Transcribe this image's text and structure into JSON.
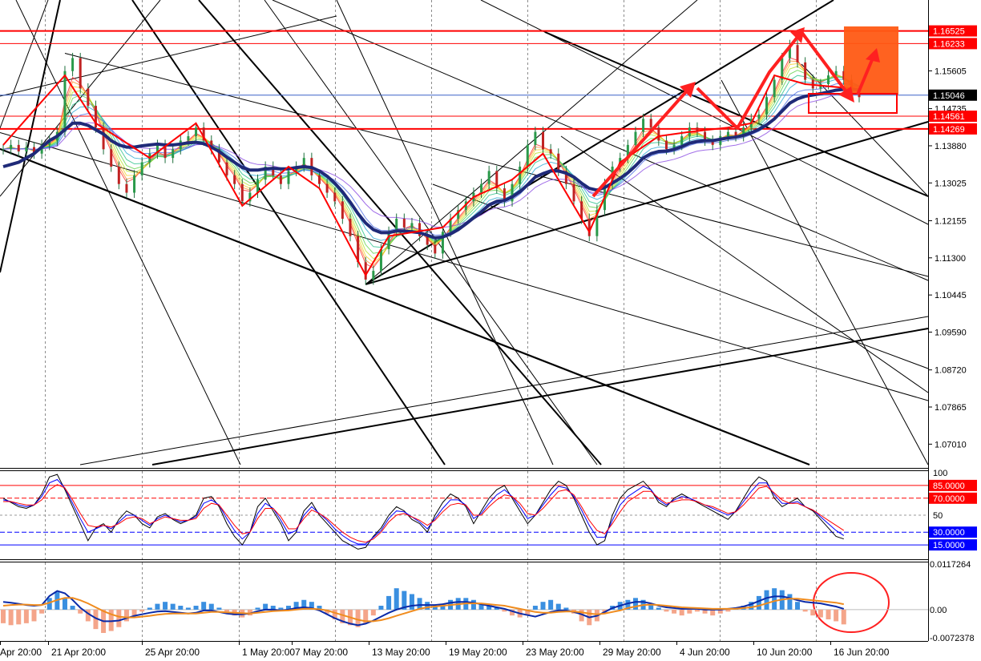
{
  "chart_data": [
    {
      "type": "candlestick",
      "panel": "price",
      "ylim": [
        1.065,
        1.172
      ],
      "price_ticks": [
        "1.15605",
        "1.14735",
        "1.13880",
        "1.13025",
        "1.12155",
        "1.11300",
        "1.10445",
        "1.09590",
        "1.08720",
        "1.07865",
        "1.07010"
      ],
      "levels": [
        {
          "label": "1.16525",
          "value": 1.16525,
          "color": "#ff0000",
          "style": "thick"
        },
        {
          "label": "1.16233",
          "value": 1.16233,
          "color": "#ff0000",
          "style": "thin"
        },
        {
          "label": "1.15046",
          "value": 1.15046,
          "color": "#000000",
          "style": "current"
        },
        {
          "label": "1.14561",
          "value": 1.14561,
          "color": "#ff0000",
          "style": "thin"
        },
        {
          "label": "1.14269",
          "value": 1.14269,
          "color": "#ff0000",
          "style": "thick"
        }
      ],
      "series": [
        {
          "name": "",
          "kind": "close",
          "color": "#2a7f5f",
          "values": [
            1.138,
            1.139,
            1.1375,
            1.1385,
            1.137,
            1.139,
            1.14,
            1.142,
            1.156,
            1.159,
            1.152,
            1.148,
            1.143,
            1.138,
            1.134,
            1.13,
            1.128,
            1.132,
            1.135,
            1.137,
            1.139,
            1.136,
            1.138,
            1.14,
            1.141,
            1.143,
            1.14,
            1.138,
            1.135,
            1.132,
            1.13,
            1.126,
            1.128,
            1.131,
            1.134,
            1.132,
            1.13,
            1.133,
            1.134,
            1.136,
            1.132,
            1.13,
            1.128,
            1.126,
            1.122,
            1.118,
            1.112,
            1.108,
            1.11,
            1.115,
            1.119,
            1.122,
            1.12,
            1.121,
            1.118,
            1.116,
            1.114,
            1.119,
            1.122,
            1.124,
            1.126,
            1.128,
            1.13,
            1.133,
            1.129,
            1.126,
            1.13,
            1.134,
            1.139,
            1.142,
            1.138,
            1.137,
            1.133,
            1.13,
            1.126,
            1.122,
            1.118,
            1.124,
            1.13,
            1.134,
            1.136,
            1.139,
            1.142,
            1.145,
            1.143,
            1.14,
            1.138,
            1.139,
            1.141,
            1.143,
            1.142,
            1.14,
            1.139,
            1.141,
            1.142,
            1.141,
            1.143,
            1.145,
            1.146,
            1.15,
            1.154,
            1.159,
            1.162,
            1.158,
            1.154,
            1.152,
            1.153,
            1.155,
            1.156,
            1.154,
            1.151,
            1.15
          ]
        },
        {
          "name": "",
          "kind": "ma",
          "color": "#1f2a78",
          "values": [
            1.134,
            1.1345,
            1.135,
            1.136,
            1.137,
            1.1385,
            1.14,
            1.141,
            1.1425,
            1.144,
            1.144,
            1.1435,
            1.1425,
            1.1415,
            1.14,
            1.139,
            1.1385,
            1.1385,
            1.1388,
            1.139,
            1.1392,
            1.139,
            1.139,
            1.1392,
            1.1395,
            1.1396,
            1.1393,
            1.1385,
            1.1375,
            1.1362,
            1.135,
            1.1338,
            1.1332,
            1.1332,
            1.1335,
            1.1336,
            1.1335,
            1.1335,
            1.1338,
            1.134,
            1.1338,
            1.133,
            1.1318,
            1.1302,
            1.1282,
            1.1258,
            1.1232,
            1.121,
            1.1195,
            1.1188,
            1.1188,
            1.1192,
            1.1192,
            1.119,
            1.1188,
            1.1182,
            1.1176,
            1.1178,
            1.1185,
            1.1195,
            1.1208,
            1.1222,
            1.1236,
            1.1252,
            1.126,
            1.1262,
            1.127,
            1.1282,
            1.1298,
            1.1316,
            1.1324,
            1.133,
            1.133,
            1.1325,
            1.1316,
            1.1302,
            1.129,
            1.1286,
            1.1292,
            1.1302,
            1.1313,
            1.1326,
            1.1342,
            1.136,
            1.137,
            1.1375,
            1.1376,
            1.138,
            1.1386,
            1.1394,
            1.1398,
            1.14,
            1.14,
            1.1403,
            1.1406,
            1.1408,
            1.1412,
            1.1418,
            1.1426,
            1.1436,
            1.145,
            1.1468,
            1.1486,
            1.1496,
            1.1502,
            1.1505,
            1.1508,
            1.1512,
            1.1516,
            1.1518,
            1.1518,
            1.1517
          ]
        }
      ]
    },
    {
      "type": "line",
      "panel": "stochastic",
      "ylim": [
        0,
        100
      ],
      "tick_labels": [
        "100",
        "50"
      ],
      "levels": [
        {
          "label": "85.0000",
          "value": 85,
          "color": "#ff0000"
        },
        {
          "label": "70.0000",
          "value": 70,
          "color": "#ff0000"
        },
        {
          "label": "30.0000",
          "value": 30,
          "color": "#0000ff"
        },
        {
          "label": "15.0000",
          "value": 15,
          "color": "#0000ff"
        }
      ],
      "series": [
        {
          "name": "",
          "color": "#000000",
          "values": [
            70,
            65,
            60,
            58,
            62,
            75,
            95,
            98,
            80,
            60,
            40,
            20,
            35,
            40,
            30,
            45,
            55,
            50,
            40,
            35,
            48,
            52,
            45,
            40,
            44,
            50,
            70,
            72,
            60,
            40,
            25,
            15,
            30,
            60,
            70,
            55,
            40,
            20,
            30,
            55,
            65,
            50,
            40,
            30,
            20,
            15,
            10,
            12,
            25,
            35,
            50,
            60,
            55,
            45,
            40,
            30,
            50,
            65,
            75,
            70,
            60,
            40,
            55,
            70,
            80,
            85,
            70,
            55,
            40,
            50,
            65,
            80,
            90,
            85,
            70,
            50,
            30,
            15,
            20,
            50,
            70,
            80,
            85,
            90,
            80,
            65,
            60,
            70,
            75,
            70,
            65,
            60,
            55,
            50,
            45,
            55,
            70,
            85,
            95,
            90,
            70,
            60,
            65,
            70,
            60,
            55,
            45,
            35,
            25,
            22
          ]
        },
        {
          "name": "",
          "color": "#0000ff",
          "values": [
            68,
            66,
            62,
            60,
            62,
            72,
            88,
            92,
            82,
            64,
            46,
            30,
            34,
            38,
            34,
            42,
            50,
            50,
            44,
            38,
            46,
            50,
            46,
            42,
            44,
            48,
            64,
            68,
            62,
            46,
            32,
            22,
            30,
            52,
            64,
            58,
            44,
            28,
            32,
            50,
            60,
            52,
            44,
            34,
            26,
            20,
            16,
            16,
            24,
            32,
            46,
            55,
            54,
            48,
            42,
            34,
            46,
            58,
            68,
            68,
            62,
            46,
            52,
            64,
            74,
            80,
            72,
            60,
            46,
            50,
            62,
            74,
            84,
            82,
            72,
            56,
            38,
            24,
            24,
            44,
            62,
            72,
            78,
            84,
            80,
            68,
            62,
            68,
            72,
            70,
            66,
            62,
            58,
            54,
            50,
            54,
            66,
            78,
            88,
            88,
            74,
            64,
            64,
            66,
            60,
            56,
            48,
            40,
            32,
            26
          ]
        },
        {
          "name": "",
          "color": "#ff0000",
          "values": [
            66,
            66,
            64,
            62,
            62,
            68,
            80,
            86,
            82,
            68,
            52,
            38,
            36,
            38,
            36,
            40,
            46,
            48,
            46,
            40,
            44,
            48,
            46,
            44,
            44,
            46,
            58,
            64,
            62,
            50,
            38,
            28,
            30,
            46,
            58,
            58,
            48,
            34,
            34,
            46,
            56,
            52,
            46,
            38,
            30,
            24,
            20,
            18,
            22,
            30,
            42,
            50,
            52,
            48,
            44,
            38,
            44,
            54,
            62,
            64,
            62,
            50,
            50,
            60,
            68,
            74,
            72,
            64,
            52,
            50,
            58,
            68,
            78,
            80,
            74,
            60,
            44,
            32,
            28,
            40,
            54,
            66,
            72,
            78,
            78,
            70,
            64,
            66,
            68,
            68,
            66,
            62,
            60,
            56,
            52,
            54,
            62,
            72,
            82,
            84,
            76,
            68,
            64,
            64,
            60,
            56,
            50,
            44,
            38,
            32
          ]
        }
      ]
    },
    {
      "type": "bar",
      "panel": "macd",
      "ylim": [
        -0.0072378,
        0.0117264
      ],
      "tick_labels": [
        "0.0117264",
        "0.00",
        "-0.0072378"
      ],
      "series": [
        {
          "name": "",
          "kind": "histogram",
          "color_pos": "#3a8fe0",
          "color_neg": "#f4a58a",
          "values": [
            -0.0035,
            -0.004,
            -0.0038,
            -0.0035,
            -0.003,
            -0.001,
            0.003,
            0.0045,
            0.003,
            0.001,
            -0.001,
            -0.003,
            -0.005,
            -0.006,
            -0.0055,
            -0.0045,
            -0.003,
            -0.0015,
            -0.0005,
            0.0005,
            0.0015,
            0.002,
            0.0015,
            0.001,
            0.0005,
            0.001,
            0.002,
            0.0015,
            0.0005,
            -0.0005,
            -0.0015,
            -0.002,
            -0.0015,
            0.0005,
            0.0015,
            0.001,
            0.0005,
            0.001,
            0.002,
            0.0025,
            0.002,
            0.001,
            -0.001,
            -0.0025,
            -0.0035,
            -0.004,
            -0.0045,
            -0.0035,
            -0.0015,
            0.001,
            0.0035,
            0.0055,
            0.0048,
            0.004,
            0.003,
            0.002,
            0.001,
            0.0015,
            0.0025,
            0.003,
            0.003,
            0.0025,
            0.0015,
            0.001,
            0.0005,
            -0.0005,
            -0.0015,
            -0.002,
            -0.0015,
            0.001,
            0.002,
            0.0025,
            0.0015,
            0.0005,
            -0.001,
            -0.003,
            -0.004,
            -0.003,
            -0.001,
            0.001,
            0.002,
            0.0025,
            0.003,
            0.0025,
            0.0015,
            0.0005,
            -0.0005,
            -0.001,
            -0.0015,
            -0.001,
            -0.0005,
            -0.001,
            -0.0015,
            -0.001,
            -0.0005,
            0.0005,
            0.001,
            0.002,
            0.0035,
            0.005,
            0.0055,
            0.005,
            0.004,
            0.002,
            -0.0005,
            -0.0015,
            -0.002,
            -0.0025,
            -0.003,
            -0.0038
          ]
        },
        {
          "name": "",
          "kind": "line",
          "color": "#0a2aa8",
          "values": [
            0.002,
            0.0018,
            0.0015,
            0.0012,
            0.001,
            0.0012,
            0.0035,
            0.0048,
            0.0042,
            0.0025,
            0.0005,
            -0.001,
            -0.0022,
            -0.003,
            -0.003,
            -0.0028,
            -0.0022,
            -0.0016,
            -0.0012,
            -0.0008,
            -0.0005,
            -0.0004,
            -0.0006,
            -0.0008,
            -0.001,
            -0.0008,
            -0.0002,
            -0.0002,
            -0.0006,
            -0.001,
            -0.0012,
            -0.0012,
            -0.001,
            -0.0004,
            0.0,
            0.0,
            -0.0002,
            0.0,
            0.0004,
            0.0006,
            0.0004,
            -0.0002,
            -0.0012,
            -0.0022,
            -0.003,
            -0.0036,
            -0.004,
            -0.0036,
            -0.0028,
            -0.0018,
            -0.0008,
            0.0,
            0.0006,
            0.001,
            0.0012,
            0.0012,
            0.0012,
            0.0014,
            0.0018,
            0.002,
            0.002,
            0.0018,
            0.0014,
            0.001,
            0.0006,
            0.0002,
            -0.0004,
            -0.001,
            -0.0014,
            -0.0018,
            -0.0012,
            -0.0006,
            -0.0002,
            -0.0002,
            -0.0006,
            -0.0012,
            -0.002,
            -0.0016,
            -0.0006,
            0.0004,
            0.001,
            0.0016,
            0.002,
            0.002,
            0.0016,
            0.001,
            0.0006,
            0.0004,
            0.0002,
            0.0002,
            0.0002,
            0.0,
            0.0,
            0.0,
            0.0002,
            0.0004,
            0.0008,
            0.0014,
            0.0022,
            0.003,
            0.0034,
            0.0034,
            0.003,
            0.0024,
            0.002,
            0.0018,
            0.0016,
            0.0012,
            0.0008,
            0.0002
          ]
        },
        {
          "name": "",
          "kind": "signal",
          "color": "#f08c1e",
          "values": [
            0.001,
            0.0012,
            0.0013,
            0.0013,
            0.0012,
            0.0012,
            0.0018,
            0.0025,
            0.003,
            0.003,
            0.0024,
            0.0016,
            0.0006,
            -0.0004,
            -0.0012,
            -0.0018,
            -0.002,
            -0.002,
            -0.0018,
            -0.0016,
            -0.0013,
            -0.0011,
            -0.001,
            -0.001,
            -0.001,
            -0.001,
            -0.0008,
            -0.0006,
            -0.0006,
            -0.0007,
            -0.0008,
            -0.0009,
            -0.001,
            -0.0008,
            -0.0006,
            -0.0004,
            -0.0003,
            -0.0002,
            0.0,
            0.0002,
            0.0002,
            0.0001,
            -0.0002,
            -0.0008,
            -0.0014,
            -0.002,
            -0.0026,
            -0.003,
            -0.003,
            -0.0027,
            -0.0022,
            -0.0016,
            -0.001,
            -0.0004,
            0.0002,
            0.0006,
            0.0008,
            0.001,
            0.0012,
            0.0014,
            0.0016,
            0.0016,
            0.0016,
            0.0014,
            0.0012,
            0.001,
            0.0006,
            0.0002,
            -0.0002,
            -0.0006,
            -0.0008,
            -0.0008,
            -0.0006,
            -0.0005,
            -0.0005,
            -0.0007,
            -0.001,
            -0.0012,
            -0.001,
            -0.0006,
            -0.0002,
            0.0004,
            0.0008,
            0.0012,
            0.0013,
            0.0012,
            0.001,
            0.0008,
            0.0006,
            0.0005,
            0.0004,
            0.0003,
            0.0002,
            0.0002,
            0.0002,
            0.0002,
            0.0004,
            0.0006,
            0.001,
            0.0016,
            0.0022,
            0.0026,
            0.0028,
            0.0028,
            0.0026,
            0.0024,
            0.0022,
            0.002,
            0.0018,
            0.0014
          ]
        }
      ]
    }
  ],
  "time_axis": {
    "labels": [
      "Apr 20:00",
      "21 Apr 20:00",
      "25 Apr 20:00",
      "1 May 20:00",
      "7 May 20:00",
      "13 May 20:00",
      "19 May 20:00",
      "23 May 20:00",
      "29 May 20:00",
      "4 Jun 20:00",
      "10 Jun 20:00",
      "16 Jun 20:00"
    ]
  },
  "colors": {
    "background": "#ffffff",
    "grid": "#9a9a9a",
    "support_resistance": "#ff0000",
    "projection_box": "#ff5a14",
    "moving_average": "#1f2a78",
    "annotation": "#ff2020"
  }
}
